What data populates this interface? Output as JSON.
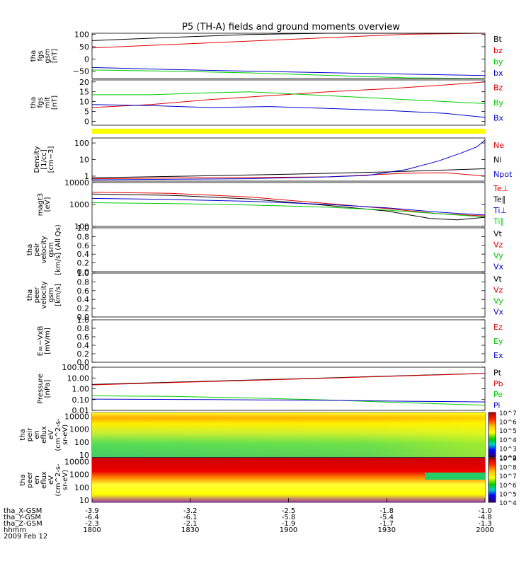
{
  "title": "P5 (TH-A) fields and ground moments overview",
  "colors": {
    "black": "#000000",
    "red": "#e00000",
    "green": "#00cc00",
    "blue": "#0000cc",
    "yellow": "#ffff00"
  },
  "chart_data": [
    {
      "type": "line",
      "id": "fgs_gsm",
      "ylabel": [
        "tha",
        "fgs",
        "gsm",
        "[nT]"
      ],
      "ylim": [
        -80,
        105
      ],
      "yticks": [
        100,
        50,
        0,
        -50
      ],
      "ytick_labels": [
        "100",
        "50",
        "0",
        "−50"
      ],
      "log": false,
      "series": [
        {
          "name": "Bt",
          "color": "black",
          "points": [
            [
              0,
              75
            ],
            [
              20,
              88
            ],
            [
              40,
              100
            ],
            [
              60,
              110
            ],
            [
              80,
              115
            ],
            [
              100,
              120
            ]
          ]
        },
        {
          "name": "bz",
          "color": "red",
          "points": [
            [
              0,
              45
            ],
            [
              20,
              59
            ],
            [
              40,
              73
            ],
            [
              60,
              87
            ],
            [
              80,
              101
            ],
            [
              100,
              115
            ]
          ]
        },
        {
          "name": "by",
          "color": "green",
          "points": [
            [
              0,
              -45
            ],
            [
              20,
              -50
            ],
            [
              40,
              -57
            ],
            [
              60,
              -67
            ],
            [
              80,
              -77
            ],
            [
              100,
              -90
            ]
          ]
        },
        {
          "name": "bx",
          "color": "blue",
          "points": [
            [
              0,
              -35
            ],
            [
              20,
              -43
            ],
            [
              40,
              -50
            ],
            [
              60,
              -56
            ],
            [
              80,
              -62
            ],
            [
              100,
              -68
            ]
          ]
        }
      ]
    },
    {
      "type": "line",
      "id": "fgs_mlt",
      "ylabel": [
        "tha",
        "fgs",
        "mlt",
        "[nT]"
      ],
      "ylim": [
        -2,
        21
      ],
      "yticks": [
        20,
        15,
        10,
        5,
        0
      ],
      "ytick_labels": [
        "20",
        "15",
        "10",
        "5",
        "0"
      ],
      "log": false,
      "series": [
        {
          "name": "Bz",
          "color": "red",
          "points": [
            [
              0,
              7
            ],
            [
              15,
              8.5
            ],
            [
              30,
              11
            ],
            [
              45,
              13
            ],
            [
              60,
              15
            ],
            [
              75,
              16.5
            ],
            [
              90,
              18.5
            ],
            [
              100,
              20
            ]
          ]
        },
        {
          "name": "By",
          "color": "green",
          "points": [
            [
              0,
              13.5
            ],
            [
              15,
              13.5
            ],
            [
              30,
              14.5
            ],
            [
              40,
              15
            ],
            [
              55,
              13.5
            ],
            [
              70,
              12
            ],
            [
              85,
              10.5
            ],
            [
              100,
              9
            ]
          ]
        },
        {
          "name": "Bx",
          "color": "blue",
          "points": [
            [
              0,
              8.5
            ],
            [
              15,
              8
            ],
            [
              30,
              7
            ],
            [
              45,
              7.5
            ],
            [
              60,
              6.5
            ],
            [
              75,
              5.5
            ],
            [
              90,
              4
            ],
            [
              100,
              2
            ]
          ]
        }
      ]
    },
    {
      "type": "line",
      "id": "density",
      "ylabel": [
        "Density",
        "[1/cc]",
        "[cm−3]"
      ],
      "ylim": [
        0.5,
        200
      ],
      "yticks": [
        100,
        10,
        1
      ],
      "ytick_labels": [
        "100",
        "10",
        "1"
      ],
      "log": true,
      "series": [
        {
          "name": "Ne",
          "color": "red",
          "points": [
            [
              0,
              0.7
            ],
            [
              30,
              0.8
            ],
            [
              60,
              0.9
            ],
            [
              80,
              1.5
            ],
            [
              90,
              1.6
            ],
            [
              100,
              1.0
            ]
          ]
        },
        {
          "name": "Ni",
          "color": "black",
          "points": [
            [
              0,
              0.8
            ],
            [
              25,
              1.0
            ],
            [
              50,
              1.3
            ],
            [
              75,
              1.8
            ],
            [
              100,
              2.8
            ]
          ]
        },
        {
          "name": "Npot",
          "color": "blue",
          "points": [
            [
              0,
              0.6
            ],
            [
              40,
              0.7
            ],
            [
              60,
              0.9
            ],
            [
              70,
              1.1
            ],
            [
              80,
              2.5
            ],
            [
              88,
              8
            ],
            [
              94,
              25
            ],
            [
              98,
              60
            ],
            [
              100,
              150
            ]
          ]
        }
      ]
    },
    {
      "type": "line",
      "id": "temperature",
      "ylabel": [
        "magt3",
        "[eV]"
      ],
      "ylim": [
        100,
        10000
      ],
      "yticks": [
        10000,
        1000,
        100
      ],
      "ytick_labels": [
        "10000",
        "1000",
        "100"
      ],
      "log": true,
      "series": [
        {
          "name": "Te⊥",
          "color": "red",
          "points": [
            [
              0,
              3600
            ],
            [
              20,
              3200
            ],
            [
              40,
              2200
            ],
            [
              60,
              1100
            ],
            [
              75,
              650
            ],
            [
              88,
              380
            ],
            [
              100,
              300
            ]
          ]
        },
        {
          "name": "Te∥",
          "color": "black",
          "points": [
            [
              0,
              3000
            ],
            [
              20,
              2600
            ],
            [
              40,
              1800
            ],
            [
              60,
              900
            ],
            [
              75,
              500
            ],
            [
              86,
              230
            ],
            [
              93,
              200
            ],
            [
              100,
              260
            ]
          ]
        },
        {
          "name": "Ti⊥",
          "color": "blue",
          "points": [
            [
              0,
              1900
            ],
            [
              20,
              1700
            ],
            [
              40,
              1400
            ],
            [
              60,
              1000
            ],
            [
              75,
              700
            ],
            [
              88,
              450
            ],
            [
              100,
              330
            ]
          ]
        },
        {
          "name": "Ti∥",
          "color": "green",
          "points": [
            [
              0,
              1200
            ],
            [
              20,
              1100
            ],
            [
              40,
              950
            ],
            [
              60,
              750
            ],
            [
              75,
              550
            ],
            [
              88,
              380
            ],
            [
              100,
              270
            ]
          ]
        }
      ]
    },
    {
      "type": "line",
      "id": "peir_velocity",
      "ylabel": [
        "tha",
        "peir",
        "velocity",
        "gsm",
        "[km/s] (All Qs)"
      ],
      "ylim": [
        0,
        1
      ],
      "yticks": [
        1.0,
        0.8,
        0.6,
        0.4,
        0.2,
        0.0
      ],
      "ytick_labels": [
        "1.0",
        "0.8",
        "0.6",
        "0.4",
        "0.2",
        "0.0"
      ],
      "log": false,
      "series": [
        {
          "name": "Vt",
          "color": "black",
          "points": []
        },
        {
          "name": "Vz",
          "color": "red",
          "points": []
        },
        {
          "name": "Vy",
          "color": "green",
          "points": []
        },
        {
          "name": "Vx",
          "color": "blue",
          "points": []
        }
      ]
    },
    {
      "type": "line",
      "id": "peer_velocity",
      "ylabel": [
        "tha",
        "peer",
        "velocity",
        "gsm",
        "[km/s]"
      ],
      "ylim": [
        0,
        1
      ],
      "yticks": [
        1.0,
        0.8,
        0.6,
        0.4,
        0.2,
        0.0
      ],
      "ytick_labels": [
        "1.0",
        "0.8",
        "0.6",
        "0.4",
        "0.2",
        "0.0"
      ],
      "log": false,
      "series": [
        {
          "name": "Vt",
          "color": "black",
          "points": []
        },
        {
          "name": "Vz",
          "color": "red",
          "points": []
        },
        {
          "name": "Vy",
          "color": "green",
          "points": []
        },
        {
          "name": "Vx",
          "color": "blue",
          "points": []
        }
      ]
    },
    {
      "type": "line",
      "id": "efield",
      "ylabel": [
        "E=−VxB",
        "[mV/m]"
      ],
      "ylim": [
        0,
        1
      ],
      "yticks": [
        1.0,
        0.8,
        0.6,
        0.4,
        0.2,
        0.0
      ],
      "ytick_labels": [
        "1.0",
        "0.8",
        "0.6",
        "0.4",
        "0.2",
        "0.0"
      ],
      "log": false,
      "series": [
        {
          "name": "Ez",
          "color": "red",
          "points": []
        },
        {
          "name": "Ey",
          "color": "green",
          "points": []
        },
        {
          "name": "Ex",
          "color": "blue",
          "points": []
        }
      ]
    },
    {
      "type": "line",
      "id": "pressure",
      "ylabel": [
        "Pressure",
        "[nPa]"
      ],
      "ylim": [
        0.01,
        100
      ],
      "yticks": [
        100,
        10,
        1,
        0.1,
        0.01
      ],
      "ytick_labels": [
        "100.00",
        "10.00",
        "1.00",
        "0.10",
        "0.01"
      ],
      "log": true,
      "series": [
        {
          "name": "Pt",
          "color": "black",
          "points": [
            [
              0,
              2.5
            ],
            [
              25,
              4.5
            ],
            [
              50,
              8
            ],
            [
              75,
              15
            ],
            [
              100,
              27
            ]
          ]
        },
        {
          "name": "Pb",
          "color": "red",
          "points": [
            [
              0,
              2.3
            ],
            [
              25,
              4.2
            ],
            [
              50,
              7.6
            ],
            [
              75,
              14
            ],
            [
              100,
              26
            ]
          ]
        },
        {
          "name": "Pe",
          "color": "green",
          "points": [
            [
              0,
              0.22
            ],
            [
              20,
              0.2
            ],
            [
              40,
              0.14
            ],
            [
              60,
              0.09
            ],
            [
              80,
              0.05
            ],
            [
              100,
              0.03
            ]
          ]
        },
        {
          "name": "Pi",
          "color": "blue",
          "points": [
            [
              0,
              0.11
            ],
            [
              30,
              0.1
            ],
            [
              60,
              0.085
            ],
            [
              80,
              0.07
            ],
            [
              100,
              0.06
            ]
          ]
        }
      ]
    },
    {
      "type": "heatmap",
      "id": "peir_spec",
      "ylabel": [
        "tha",
        "peir",
        "en",
        "eflux",
        "eV",
        "(cm^2-s-",
        "sr-eV)"
      ],
      "ylim": [
        7,
        20000
      ],
      "yticks": [
        10000,
        1000,
        100,
        10
      ],
      "ytick_labels": [
        "10000",
        "1000",
        "100",
        "10"
      ],
      "log": true,
      "colorbar": {
        "ticks": [
          "10^7",
          "10^6",
          "10^5",
          "10^4",
          "10^3",
          "10^2"
        ]
      }
    },
    {
      "type": "heatmap",
      "id": "peer_spec",
      "ylabel": [
        "tha",
        "peer",
        "en",
        "eflux",
        "eV",
        "(cm^2-s-",
        "sr-eV)"
      ],
      "ylim": [
        7,
        20000
      ],
      "yticks": [
        10000,
        1000,
        100,
        10
      ],
      "ytick_labels": [
        "10000",
        "1000",
        "100",
        "10"
      ],
      "log": true,
      "colorbar": {
        "ticks": [
          "10^9",
          "10^8",
          "10^7",
          "10^6",
          "10^5",
          "10^4"
        ]
      }
    }
  ],
  "xaxis": {
    "rows": [
      {
        "label": "tha_X-GSM",
        "values": [
          "-3.9",
          "-3.2",
          "-2.5",
          "-1.8",
          "-1.0"
        ]
      },
      {
        "label": "tha_Y-GSM",
        "values": [
          "-6.4",
          "-6.1",
          "-5.8",
          "-5.4",
          "-4.8"
        ]
      },
      {
        "label": "tha_Z-GSM",
        "values": [
          "-2.3",
          "-2.1",
          "-1.9",
          "-1.7",
          "-1.3"
        ]
      },
      {
        "label": "hhmm",
        "values": [
          "1800",
          "1830",
          "1900",
          "1930",
          "2000"
        ]
      }
    ],
    "date": "2009 Feb 12"
  }
}
